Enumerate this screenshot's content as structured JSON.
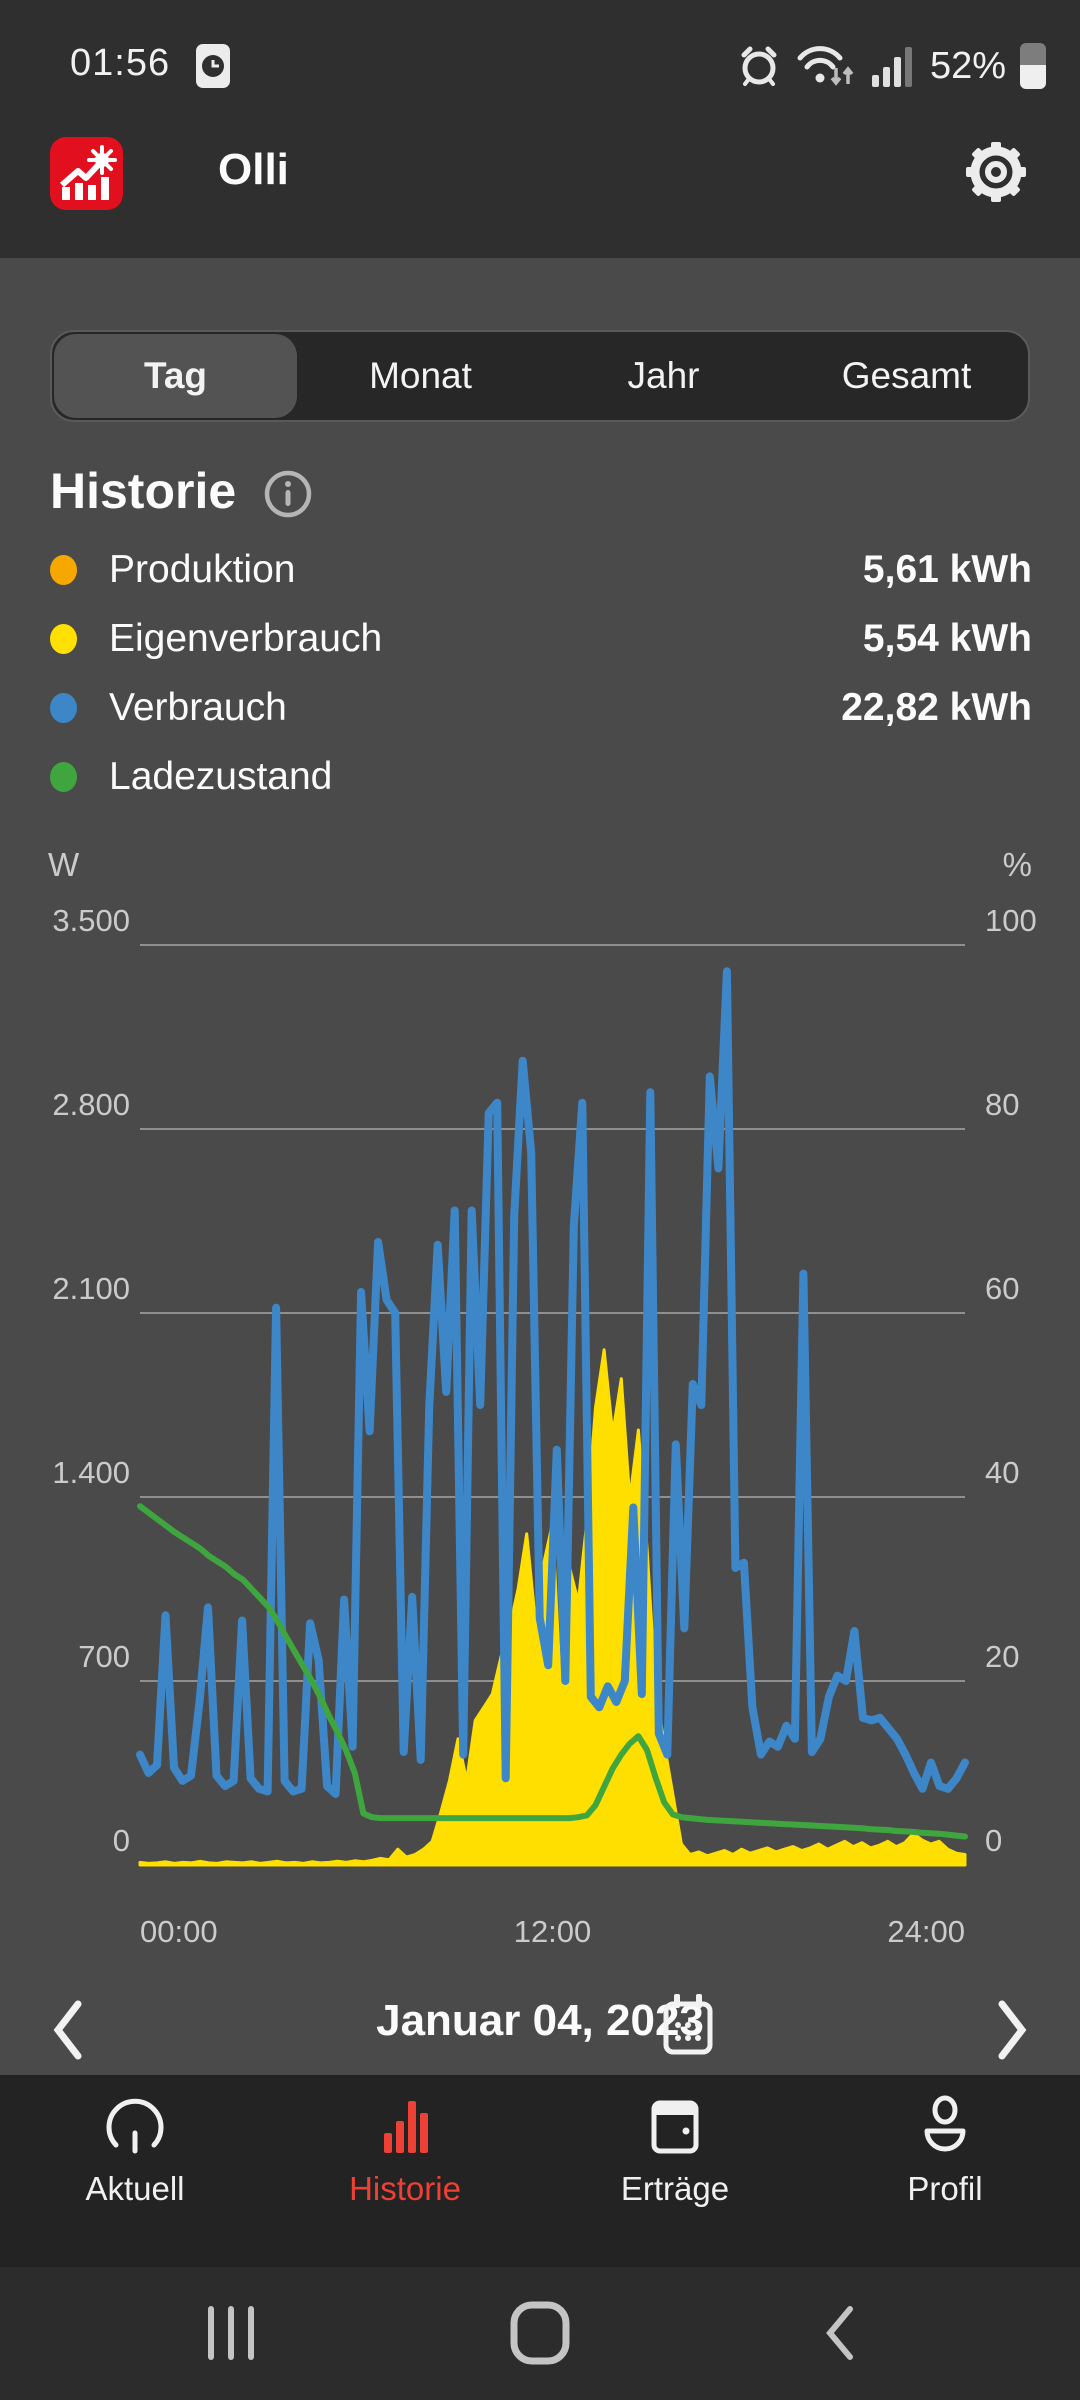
{
  "status_bar": {
    "time": "01:56",
    "battery_percent": "52%"
  },
  "app_bar": {
    "title": "Olli"
  },
  "tabs": {
    "items": [
      {
        "label": "Tag",
        "selected": true
      },
      {
        "label": "Monat",
        "selected": false
      },
      {
        "label": "Jahr",
        "selected": false
      },
      {
        "label": "Gesamt",
        "selected": false
      }
    ]
  },
  "history": {
    "title": "Historie",
    "legend": [
      {
        "label": "Produktion",
        "value": "5,61 kWh",
        "color": "#f6a800"
      },
      {
        "label": "Eigenverbrauch",
        "value": "5,54 kWh",
        "color": "#ffe000"
      },
      {
        "label": "Verbrauch",
        "value": "22,82 kWh",
        "color": "#3d87c8"
      },
      {
        "label": "Ladezustand",
        "value": "",
        "color": "#3fa63f"
      }
    ]
  },
  "date_nav": {
    "date": "Januar 04, 2023"
  },
  "bottom_nav": {
    "items": [
      {
        "label": "Aktuell",
        "active": false
      },
      {
        "label": "Historie",
        "active": true
      },
      {
        "label": "Erträge",
        "active": false
      },
      {
        "label": "Profil",
        "active": false
      }
    ]
  },
  "colors": {
    "accent_red": "#ee4136",
    "app_icon_red": "#e2101e",
    "blue": "#3d87c8",
    "yellow": "#ffdf00",
    "orange": "#f6a800",
    "green": "#3fa63f"
  },
  "chart_data": {
    "type": "line",
    "title": "Historie – Tag (Januar 04, 2023)",
    "x_unit": "hours",
    "x_range": [
      0,
      24
    ],
    "x_step": 0.25,
    "x_ticks": [
      "00:00",
      "12:00",
      "24:00"
    ],
    "left_axis": {
      "label": "W",
      "range": [
        0,
        3500
      ],
      "ticks": [
        "0",
        "700",
        "1.400",
        "2.100",
        "2.800",
        "3.500"
      ]
    },
    "right_axis": {
      "label": "%",
      "range": [
        0,
        100
      ],
      "ticks": [
        "0",
        "20",
        "40",
        "60",
        "80",
        "100"
      ]
    },
    "grid": true,
    "series": [
      {
        "name": "Eigenverbrauch/Produktion",
        "type": "area",
        "axis": "left",
        "color": "#ffdf00",
        "values": [
          10,
          6,
          8,
          12,
          6,
          10,
          8,
          14,
          8,
          6,
          12,
          10,
          8,
          12,
          6,
          10,
          14,
          8,
          10,
          6,
          12,
          8,
          10,
          14,
          10,
          16,
          12,
          18,
          25,
          20,
          60,
          30,
          40,
          60,
          90,
          200,
          320,
          480,
          320,
          550,
          600,
          650,
          790,
          900,
          1050,
          1260,
          930,
          1150,
          1300,
          630,
          1130,
          1000,
          1310,
          1740,
          1960,
          1640,
          1850,
          1390,
          1655,
          1205,
          670,
          460,
          270,
          80,
          40,
          50,
          35,
          45,
          55,
          40,
          60,
          45,
          55,
          65,
          50,
          60,
          70,
          55,
          65,
          80,
          60,
          75,
          90,
          70,
          85,
          65,
          75,
          90,
          70,
          85,
          120,
          95,
          80,
          90,
          60,
          45,
          40
        ]
      },
      {
        "name": "Verbrauch",
        "type": "line",
        "axis": "left",
        "color": "#3d87c8",
        "values": [
          420,
          350,
          380,
          950,
          370,
          320,
          340,
          620,
          980,
          340,
          300,
          320,
          930,
          330,
          290,
          280,
          2120,
          320,
          280,
          290,
          920,
          780,
          300,
          270,
          1010,
          450,
          2180,
          1650,
          2370,
          2150,
          2100,
          430,
          1020,
          400,
          1740,
          2360,
          1800,
          2490,
          420,
          2490,
          1750,
          2860,
          2900,
          330,
          2470,
          3060,
          2710,
          940,
          760,
          1580,
          700,
          2430,
          2900,
          640,
          600,
          680,
          620,
          700,
          1360,
          650,
          2940,
          500,
          420,
          1600,
          900,
          1830,
          1750,
          3000,
          2650,
          3400,
          1130,
          1150,
          600,
          420,
          470,
          450,
          530,
          480,
          2250,
          430,
          480,
          640,
          720,
          700,
          890,
          560,
          550,
          560,
          520,
          480,
          420,
          350,
          290,
          390,
          300,
          290,
          330,
          390
        ]
      },
      {
        "name": "Ladezustand",
        "type": "line",
        "axis": "right",
        "color": "#3fa63f",
        "values": [
          39,
          38.3,
          37.6,
          36.9,
          36.2,
          35.6,
          35,
          34.4,
          33.6,
          33,
          32.4,
          31.6,
          31,
          30,
          29,
          28,
          26.5,
          24.8,
          23.2,
          21.6,
          20,
          18.2,
          16.2,
          14.4,
          12.4,
          10,
          5.6,
          5.2,
          5.1,
          5.1,
          5.1,
          5.1,
          5.1,
          5.1,
          5.1,
          5.1,
          5.1,
          5.1,
          5.1,
          5.1,
          5.1,
          5.1,
          5.1,
          5.1,
          5.1,
          5.1,
          5.1,
          5.1,
          5.1,
          5.1,
          5.1,
          5.2,
          5.4,
          6.5,
          8.5,
          10.5,
          12,
          13.2,
          14,
          12.5,
          9.5,
          6.8,
          5.5,
          5.2,
          5.1,
          5,
          4.9,
          4.85,
          4.8,
          4.75,
          4.7,
          4.65,
          4.6,
          4.55,
          4.5,
          4.45,
          4.4,
          4.35,
          4.3,
          4.25,
          4.2,
          4.15,
          4.1,
          4.05,
          4,
          3.9,
          3.85,
          3.8,
          3.7,
          3.65,
          3.6,
          3.5,
          3.45,
          3.4,
          3.3,
          3.2,
          3.1
        ]
      }
    ]
  }
}
